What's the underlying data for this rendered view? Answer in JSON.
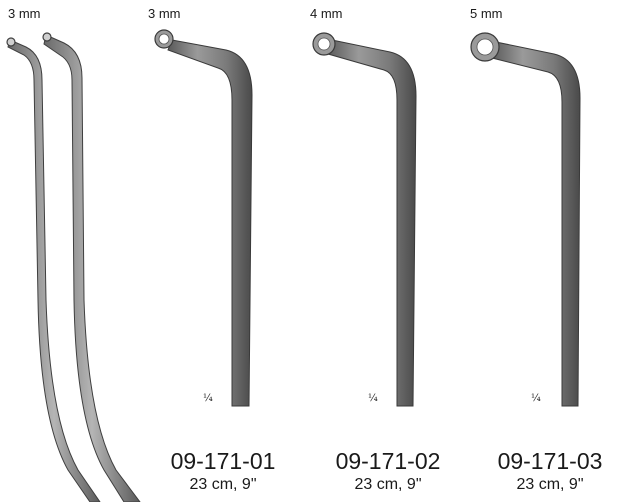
{
  "left_view": {
    "size_label": "3 mm"
  },
  "instruments": [
    {
      "size_label": "3 mm",
      "scale_mark": "¼",
      "code": "09-171-01",
      "dimensions": "23 cm, 9\""
    },
    {
      "size_label": "4 mm",
      "scale_mark": "¼",
      "code": "09-171-02",
      "dimensions": "23 cm, 9\""
    },
    {
      "size_label": "5 mm",
      "scale_mark": "¼",
      "code": "09-171-03",
      "dimensions": "23 cm, 9\""
    }
  ],
  "colors": {
    "steel": "#8a8a8a",
    "steel_dark": "#4d4d4d",
    "steel_light": "#c9c9c9"
  }
}
